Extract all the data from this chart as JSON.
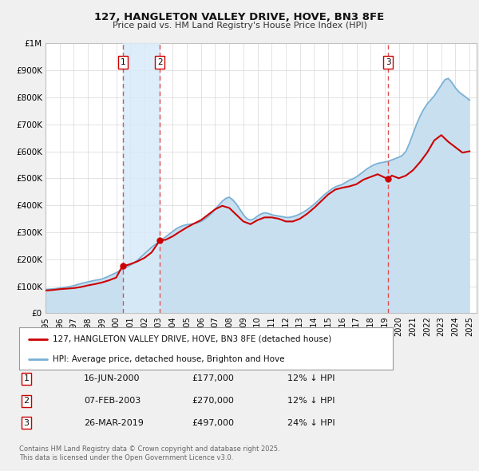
{
  "title": "127, HANGLETON VALLEY DRIVE, HOVE, BN3 8FE",
  "subtitle": "Price paid vs. HM Land Registry's House Price Index (HPI)",
  "background_color": "#f0f0f0",
  "plot_bg_color": "#ffffff",
  "ylim": [
    0,
    1000000
  ],
  "xlim_start": 1995.0,
  "xlim_end": 2025.5,
  "yticks": [
    0,
    100000,
    200000,
    300000,
    400000,
    500000,
    600000,
    700000,
    800000,
    900000,
    1000000
  ],
  "ytick_labels": [
    "£0",
    "£100K",
    "£200K",
    "£300K",
    "£400K",
    "£500K",
    "£600K",
    "£700K",
    "£800K",
    "£900K",
    "£1M"
  ],
  "xticks": [
    1995,
    1996,
    1997,
    1998,
    1999,
    2000,
    2001,
    2002,
    2003,
    2004,
    2005,
    2006,
    2007,
    2008,
    2009,
    2010,
    2011,
    2012,
    2013,
    2014,
    2015,
    2016,
    2017,
    2018,
    2019,
    2020,
    2021,
    2022,
    2023,
    2024,
    2025
  ],
  "sale_dates": [
    2000.46,
    2003.09,
    2019.23
  ],
  "sale_prices": [
    177000,
    270000,
    497000
  ],
  "sale_labels": [
    "1",
    "2",
    "3"
  ],
  "sale_date_strs": [
    "16-JUN-2000",
    "07-FEB-2003",
    "26-MAR-2019"
  ],
  "sale_price_strs": [
    "£177,000",
    "£270,000",
    "£497,000"
  ],
  "sale_hpi_strs": [
    "12% ↓ HPI",
    "12% ↓ HPI",
    "24% ↓ HPI"
  ],
  "property_line_color": "#cc0000",
  "hpi_line_color": "#7ab0d4",
  "hpi_fill_color": "#c8dff0",
  "vline_color": "#e05050",
  "shade_color": "#d8eaf8",
  "legend_label_property": "127, HANGLETON VALLEY DRIVE, HOVE, BN3 8FE (detached house)",
  "legend_label_hpi": "HPI: Average price, detached house, Brighton and Hove",
  "footer_text": "Contains HM Land Registry data © Crown copyright and database right 2025.\nThis data is licensed under the Open Government Licence v3.0.",
  "hpi_data_x": [
    1995.0,
    1995.25,
    1995.5,
    1995.75,
    1996.0,
    1996.25,
    1996.5,
    1996.75,
    1997.0,
    1997.25,
    1997.5,
    1997.75,
    1998.0,
    1998.25,
    1998.5,
    1998.75,
    1999.0,
    1999.25,
    1999.5,
    1999.75,
    2000.0,
    2000.25,
    2000.5,
    2000.75,
    2001.0,
    2001.25,
    2001.5,
    2001.75,
    2002.0,
    2002.25,
    2002.5,
    2002.75,
    2003.0,
    2003.25,
    2003.5,
    2003.75,
    2004.0,
    2004.25,
    2004.5,
    2004.75,
    2005.0,
    2005.25,
    2005.5,
    2005.75,
    2006.0,
    2006.25,
    2006.5,
    2006.75,
    2007.0,
    2007.25,
    2007.5,
    2007.75,
    2008.0,
    2008.25,
    2008.5,
    2008.75,
    2009.0,
    2009.25,
    2009.5,
    2009.75,
    2010.0,
    2010.25,
    2010.5,
    2010.75,
    2011.0,
    2011.25,
    2011.5,
    2011.75,
    2012.0,
    2012.25,
    2012.5,
    2012.75,
    2013.0,
    2013.25,
    2013.5,
    2013.75,
    2014.0,
    2014.25,
    2014.5,
    2014.75,
    2015.0,
    2015.25,
    2015.5,
    2015.75,
    2016.0,
    2016.25,
    2016.5,
    2016.75,
    2017.0,
    2017.25,
    2017.5,
    2017.75,
    2018.0,
    2018.25,
    2018.5,
    2018.75,
    2019.0,
    2019.25,
    2019.5,
    2019.75,
    2020.0,
    2020.25,
    2020.5,
    2020.75,
    2021.0,
    2021.25,
    2021.5,
    2021.75,
    2022.0,
    2022.25,
    2022.5,
    2022.75,
    2023.0,
    2023.25,
    2023.5,
    2023.75,
    2024.0,
    2024.25,
    2024.5,
    2024.75,
    2025.0
  ],
  "hpi_data_y": [
    88000,
    89000,
    90000,
    91000,
    93000,
    95000,
    97000,
    99000,
    102000,
    106000,
    110000,
    113000,
    116000,
    119000,
    122000,
    124000,
    127000,
    132000,
    138000,
    144000,
    150000,
    157000,
    164000,
    171000,
    178000,
    186000,
    196000,
    208000,
    220000,
    232000,
    244000,
    254000,
    263000,
    273000,
    283000,
    293000,
    303000,
    313000,
    320000,
    325000,
    328000,
    330000,
    332000,
    335000,
    340000,
    348000,
    358000,
    370000,
    385000,
    400000,
    415000,
    425000,
    430000,
    420000,
    405000,
    385000,
    365000,
    350000,
    345000,
    350000,
    360000,
    368000,
    372000,
    370000,
    365000,
    362000,
    360000,
    358000,
    355000,
    355000,
    358000,
    362000,
    368000,
    375000,
    383000,
    393000,
    403000,
    415000,
    428000,
    440000,
    450000,
    460000,
    468000,
    473000,
    477000,
    485000,
    493000,
    498000,
    505000,
    515000,
    525000,
    535000,
    543000,
    550000,
    555000,
    558000,
    560000,
    563000,
    568000,
    573000,
    578000,
    585000,
    600000,
    630000,
    665000,
    700000,
    730000,
    755000,
    775000,
    790000,
    805000,
    825000,
    845000,
    865000,
    870000,
    855000,
    835000,
    820000,
    810000,
    800000,
    790000
  ],
  "prop_data_x": [
    1995.0,
    1995.5,
    1996.0,
    1996.5,
    1997.0,
    1997.5,
    1998.0,
    1998.5,
    1999.0,
    1999.5,
    2000.0,
    2000.46,
    2000.75,
    2001.0,
    2001.5,
    2002.0,
    2002.5,
    2003.09,
    2003.5,
    2004.0,
    2004.5,
    2005.0,
    2005.5,
    2006.0,
    2006.5,
    2007.0,
    2007.5,
    2008.0,
    2008.5,
    2009.0,
    2009.5,
    2010.0,
    2010.5,
    2011.0,
    2011.5,
    2012.0,
    2012.5,
    2013.0,
    2013.5,
    2014.0,
    2014.5,
    2015.0,
    2015.5,
    2016.0,
    2016.5,
    2017.0,
    2017.5,
    2018.0,
    2018.5,
    2019.23,
    2019.5,
    2020.0,
    2020.5,
    2021.0,
    2021.5,
    2022.0,
    2022.5,
    2023.0,
    2023.5,
    2024.0,
    2024.5,
    2025.0
  ],
  "prop_data_y": [
    84000,
    86000,
    89000,
    91000,
    93000,
    97000,
    103000,
    108000,
    114000,
    122000,
    132000,
    177000,
    178000,
    182000,
    192000,
    205000,
    225000,
    270000,
    272000,
    285000,
    302000,
    318000,
    332000,
    345000,
    365000,
    385000,
    398000,
    390000,
    365000,
    340000,
    330000,
    345000,
    355000,
    355000,
    350000,
    340000,
    340000,
    350000,
    368000,
    390000,
    415000,
    440000,
    458000,
    465000,
    470000,
    478000,
    495000,
    505000,
    515000,
    497000,
    510000,
    500000,
    510000,
    530000,
    560000,
    595000,
    640000,
    660000,
    635000,
    615000,
    595000,
    600000
  ]
}
